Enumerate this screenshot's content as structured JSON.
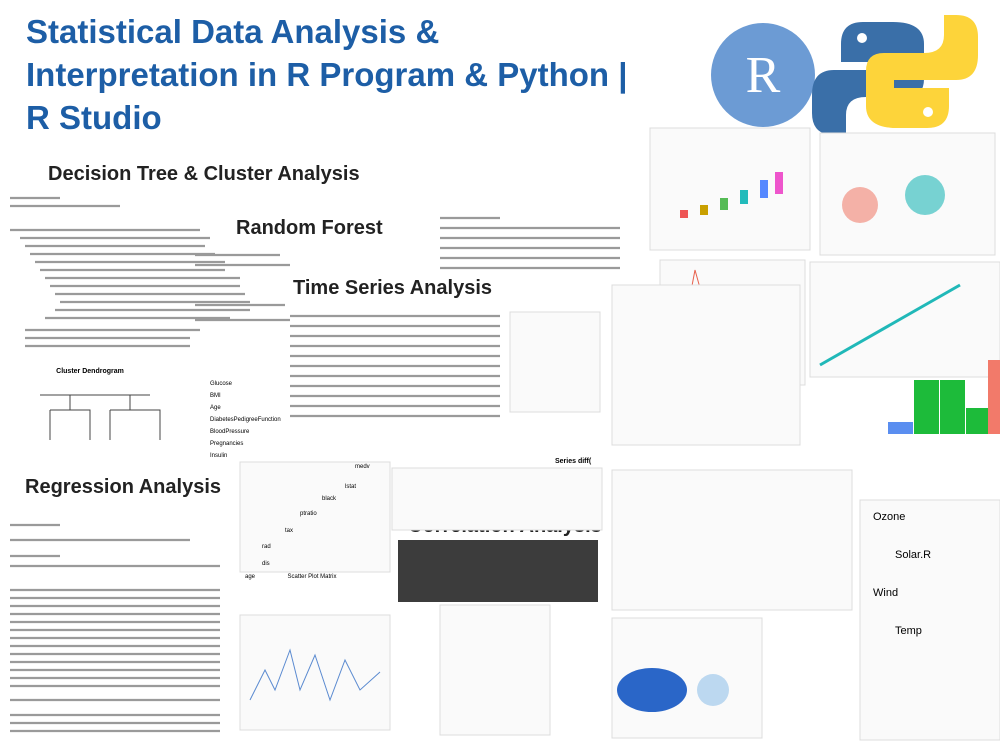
{
  "header": {
    "title_lines": [
      "Statistical Data Analysis &",
      "Interpretation in R Program & Python |",
      "R Studio"
    ],
    "r_logo": "R"
  },
  "sections": {
    "decision_tree": "Decision Tree & Cluster Analysis",
    "random_forest": "Random Forest",
    "time_series": "Time Series Analysis",
    "regression": "Regression Analysis",
    "correlation": "Correlation Analysis"
  },
  "plot_labels": {
    "dendrogram": "Cluster Dendrogram",
    "scatter_matrix": "Scatter Plot Matrix",
    "importance_vars": [
      "Glucose",
      "BMI",
      "Age",
      "DiabetesPedigreeFunction",
      "BloodPressure",
      "Pregnancies",
      "Insulin"
    ],
    "matrix_vars": [
      "medv",
      "lstat",
      "black",
      "ptratio",
      "tax",
      "rad",
      "dis",
      "age"
    ],
    "airquality_vars": [
      "Ozone",
      "Solar.R",
      "Wind",
      "Temp"
    ],
    "series_title": "Series diff("
  }
}
